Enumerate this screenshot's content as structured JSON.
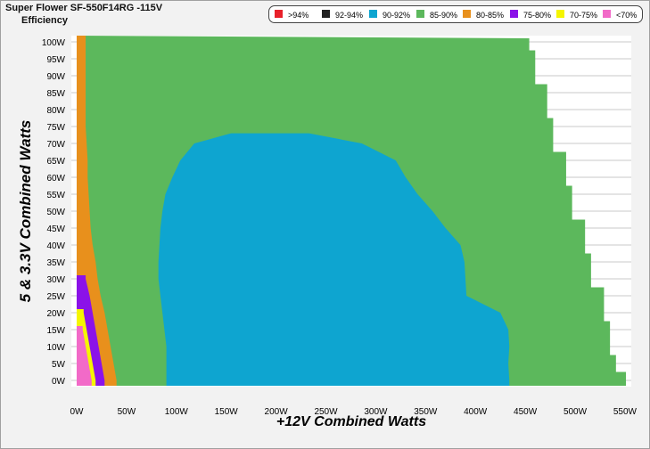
{
  "chart_data": {
    "type": "heatmap",
    "title": "Super Flower SF-550F14RG -115V",
    "subtitle": "Efficiency",
    "xlabel": "+12V Combined Watts",
    "ylabel": "5 & 3.3V Combined Watts",
    "xlim": [
      0,
      550
    ],
    "ylim": [
      0,
      100
    ],
    "x_ticks": [
      "0W",
      "50W",
      "100W",
      "150W",
      "200W",
      "250W",
      "300W",
      "350W",
      "400W",
      "450W",
      "500W",
      "550W"
    ],
    "y_ticks": [
      "0W",
      "5W",
      "10W",
      "15W",
      "20W",
      "25W",
      "30W",
      "35W",
      "40W",
      "45W",
      "50W",
      "55W",
      "60W",
      "65W",
      "70W",
      "75W",
      "80W",
      "85W",
      "90W",
      "95W",
      "100W"
    ],
    "legend_position": "top-right",
    "legend": [
      {
        "label": ">94%",
        "color": "#e8202a"
      },
      {
        "label": "92-94%",
        "color": "#222222"
      },
      {
        "label": "90-92%",
        "color": "#0ea5d0"
      },
      {
        "label": "85-90%",
        "color": "#5cb85c"
      },
      {
        "label": "80-85%",
        "color": "#e8901c"
      },
      {
        "label": "75-80%",
        "color": "#8b12e8"
      },
      {
        "label": "70-75%",
        "color": "#f5f500"
      },
      {
        "label": "<70%",
        "color": "#f26ac8"
      }
    ],
    "regions": {
      "valid_area_max_x_by_y": [
        [
          0,
          551
        ],
        [
          5,
          541
        ],
        [
          10,
          535
        ],
        [
          15,
          535
        ],
        [
          20,
          529
        ],
        [
          25,
          529
        ],
        [
          30,
          516
        ],
        [
          35,
          516
        ],
        [
          40,
          510
        ],
        [
          45,
          510
        ],
        [
          50,
          497
        ],
        [
          55,
          497
        ],
        [
          60,
          491
        ],
        [
          65,
          491
        ],
        [
          70,
          478
        ],
        [
          75,
          478
        ],
        [
          80,
          472
        ],
        [
          85,
          472
        ],
        [
          90,
          460
        ],
        [
          95,
          460
        ],
        [
          100,
          454
        ]
      ],
      "efficiency_90_92_boundary": [
        [
          0,
          90,
          434
        ],
        [
          5,
          90,
          433
        ],
        [
          10,
          90,
          434
        ],
        [
          15,
          88,
          433
        ],
        [
          20,
          86,
          425
        ],
        [
          25,
          84,
          391
        ],
        [
          30,
          82,
          390
        ],
        [
          35,
          82,
          389
        ],
        [
          40,
          83,
          385
        ],
        [
          45,
          84,
          370
        ],
        [
          50,
          86,
          357
        ],
        [
          55,
          89,
          342
        ],
        [
          60,
          96,
          330
        ],
        [
          65,
          104,
          320
        ],
        [
          70,
          118,
          286
        ],
        [
          73,
          155,
          233
        ]
      ],
      "efficiency_80_85_right_edge": [
        [
          0,
          40
        ],
        [
          5,
          37
        ],
        [
          10,
          34
        ],
        [
          15,
          31
        ],
        [
          20,
          28
        ],
        [
          25,
          24
        ],
        [
          30,
          21
        ],
        [
          35,
          19
        ],
        [
          40,
          16
        ],
        [
          45,
          14
        ],
        [
          50,
          13
        ],
        [
          55,
          12
        ],
        [
          60,
          11
        ],
        [
          65,
          11
        ],
        [
          70,
          10
        ],
        [
          75,
          9
        ],
        [
          80,
          9
        ],
        [
          85,
          9
        ],
        [
          90,
          9
        ],
        [
          95,
          9
        ],
        [
          100,
          9
        ]
      ],
      "efficiency_75_80_right_edge": [
        [
          0,
          28
        ],
        [
          5,
          25
        ],
        [
          10,
          22
        ],
        [
          15,
          19
        ],
        [
          20,
          16
        ],
        [
          25,
          13
        ],
        [
          30,
          9
        ]
      ],
      "efficiency_70_75_right_edge": [
        [
          0,
          19
        ],
        [
          5,
          16
        ],
        [
          10,
          13
        ],
        [
          15,
          10
        ],
        [
          20,
          7
        ]
      ],
      "efficiency_below_70_right_edge": [
        [
          0,
          15
        ],
        [
          5,
          12
        ],
        [
          10,
          9
        ],
        [
          15,
          6
        ]
      ]
    }
  }
}
